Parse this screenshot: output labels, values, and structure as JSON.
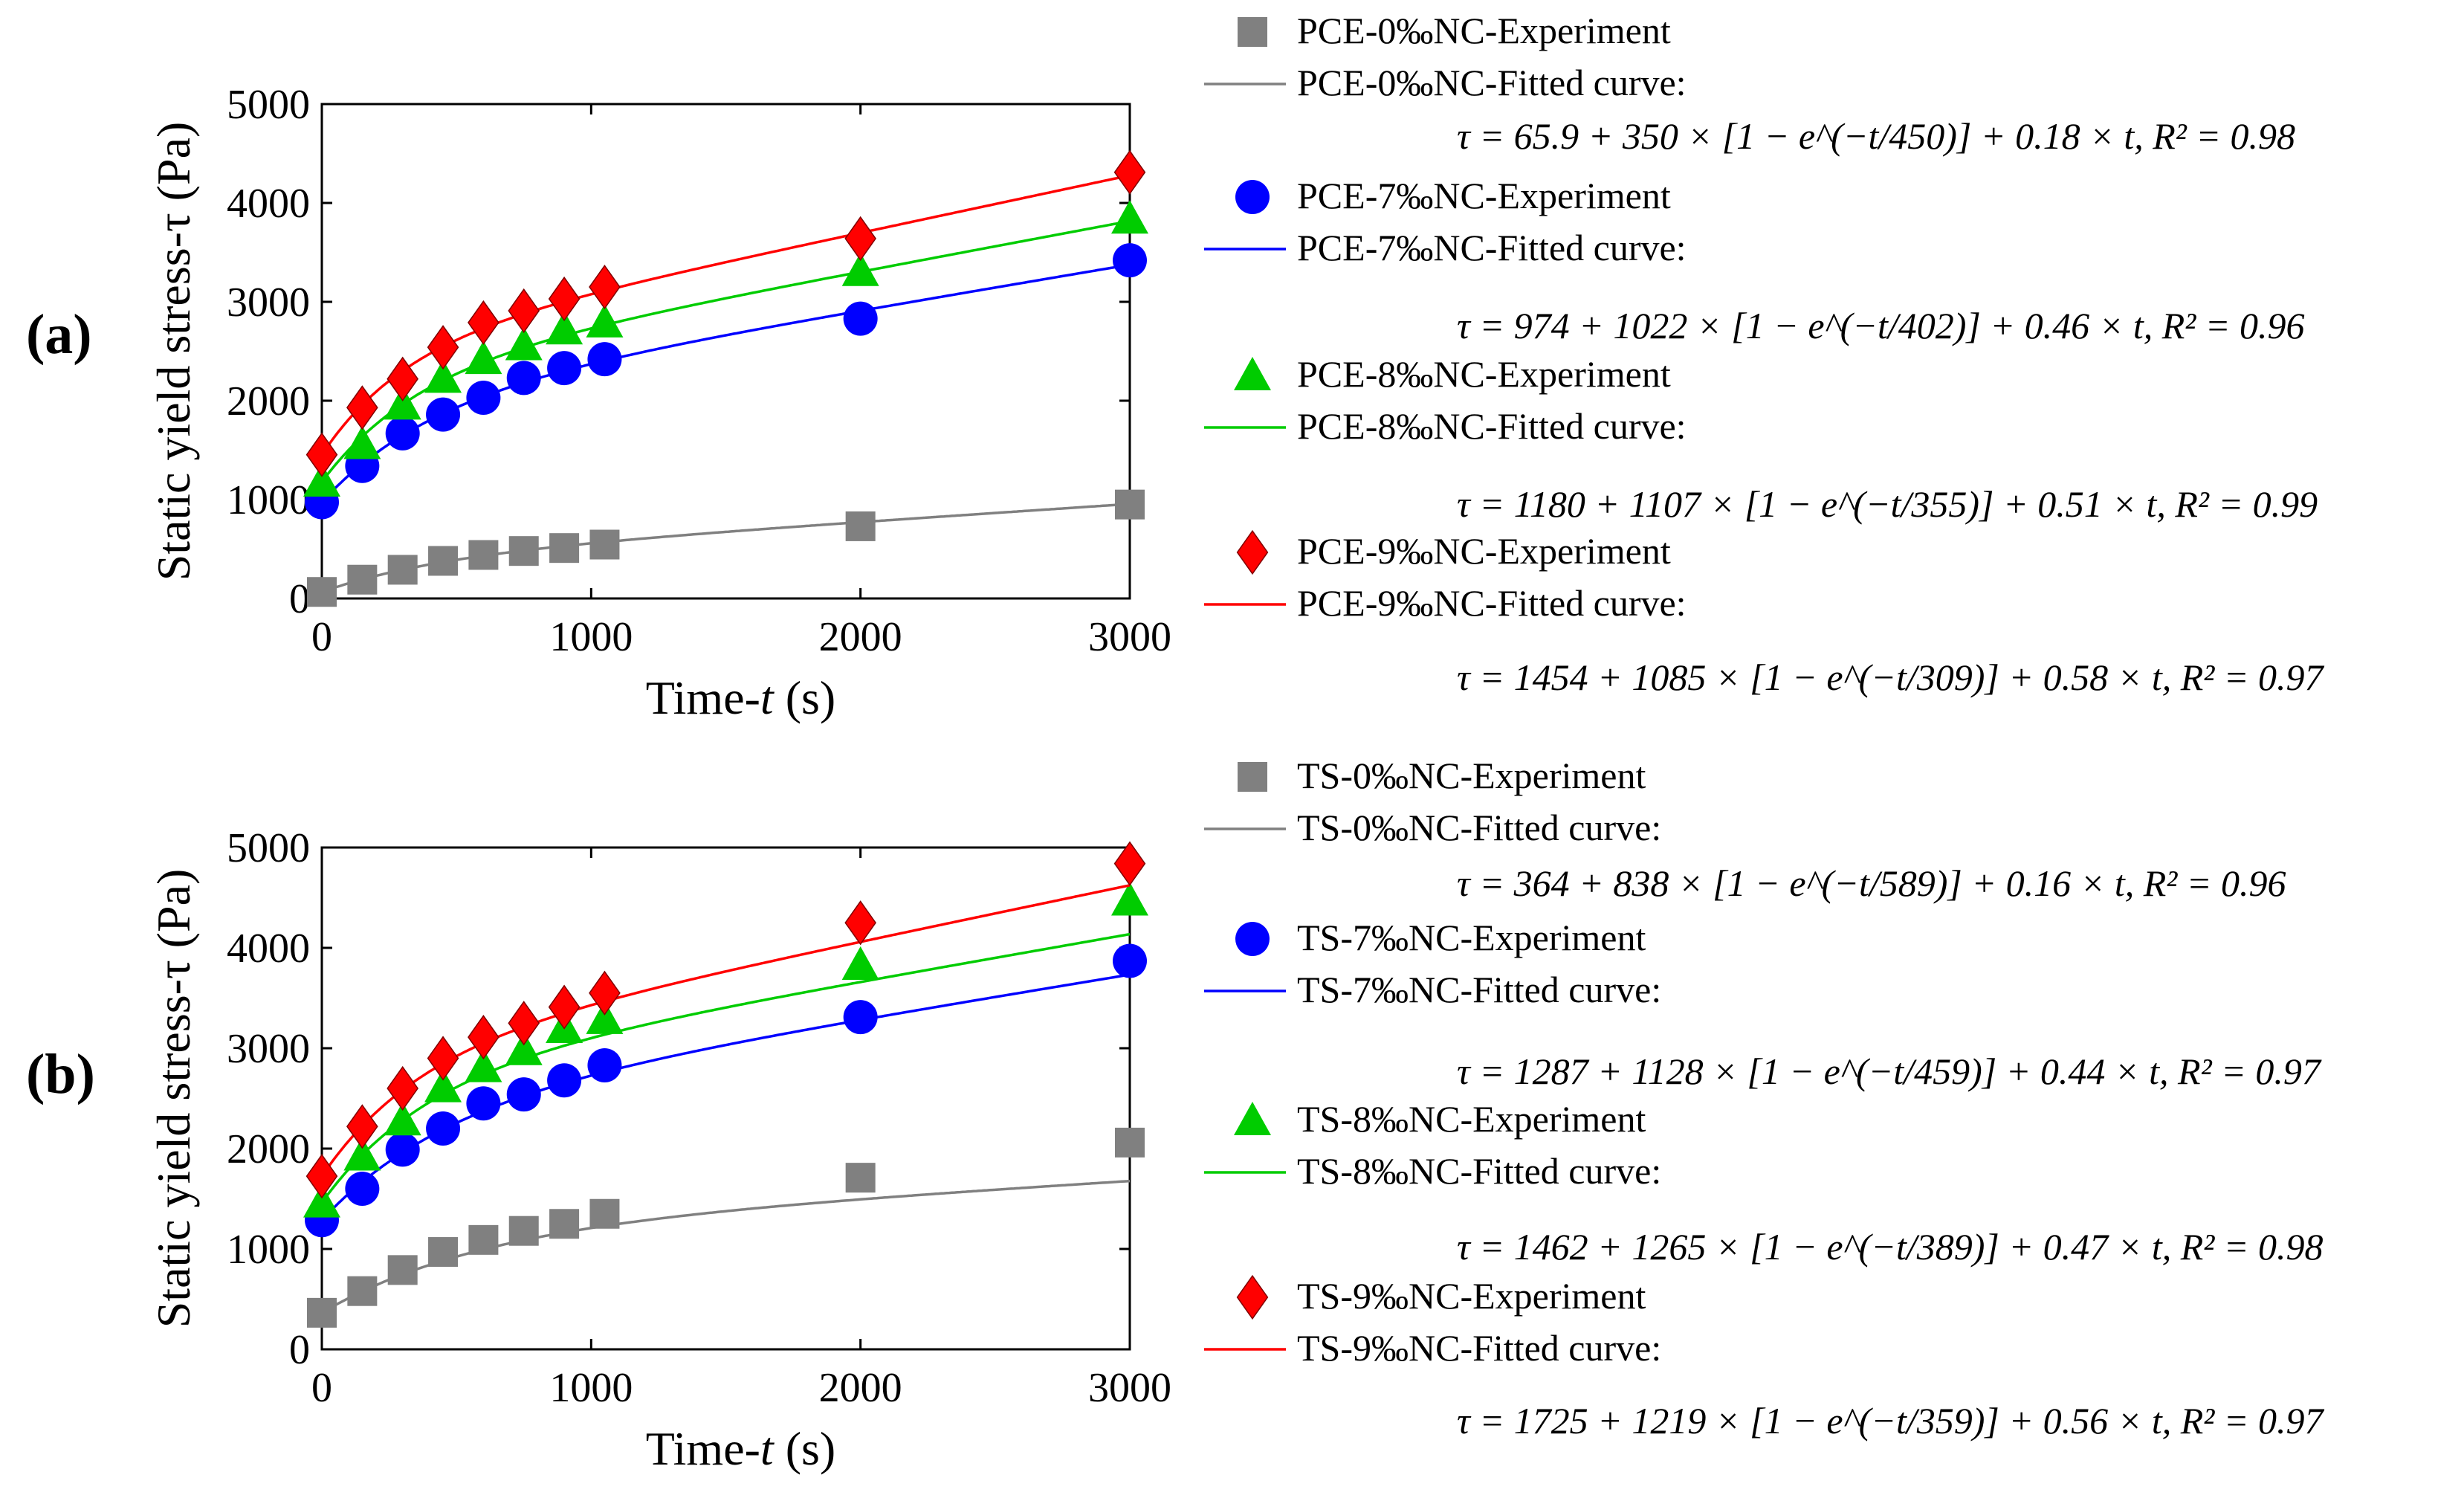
{
  "chart_data": [
    {
      "type": "line",
      "panel_label": "(a)",
      "xlabel_main": "Time-",
      "xlabel_var": "t",
      "xlabel_unit": " (s)",
      "ylabel": "Static yield stress-τ (Pa)",
      "xlim": [
        0,
        3000
      ],
      "ylim": [
        0,
        5000
      ],
      "xticks": [
        0,
        1000,
        2000,
        3000
      ],
      "yticks": [
        0,
        1000,
        2000,
        3000,
        4000,
        5000
      ],
      "x": [
        0,
        150,
        300,
        450,
        600,
        750,
        900,
        1050,
        2000,
        3000
      ],
      "series": [
        {
          "name": "PCE-0%₀NC",
          "color": "#808080",
          "marker": "square",
          "exp_label": "PCE-0‰NC-Experiment",
          "fit_label": "PCE-0‰NC-Fitted curve:",
          "equation": "τ = 65.9 + 350 × [1 − e^(−t/450)] + 0.18 × t,  R² = 0.98",
          "params": {
            "a": 65.9,
            "b": 350,
            "c": 450,
            "d": 0.18
          },
          "values": [
            66,
            190,
            290,
            380,
            440,
            480,
            510,
            545,
            730,
            950
          ]
        },
        {
          "name": "PCE-7%₀NC",
          "color": "#0000ff",
          "marker": "circle",
          "exp_label": "PCE-7‰NC-Experiment",
          "fit_label": "PCE-7‰NC-Fitted curve:",
          "equation": "τ = 974 + 1022 × [1 − e^(−t/402)] + 0.46 × t,  R² = 0.96",
          "params": {
            "a": 974,
            "b": 1022,
            "c": 402,
            "d": 0.46
          },
          "values": [
            974,
            1340,
            1670,
            1860,
            2030,
            2230,
            2330,
            2420,
            2830,
            3420
          ]
        },
        {
          "name": "PCE-8%₀NC",
          "color": "#00cc00",
          "marker": "triangle",
          "exp_label": "PCE-8‰NC-Experiment",
          "fit_label": "PCE-8‰NC-Fitted curve:",
          "equation": "τ = 1180 + 1107 × [1 − e^(−t/355)] + 0.51 × t,  R² = 0.99",
          "params": {
            "a": 1180,
            "b": 1107,
            "c": 355,
            "d": 0.51
          },
          "values": [
            1180,
            1560,
            1960,
            2230,
            2420,
            2560,
            2720,
            2790,
            3310,
            3840
          ]
        },
        {
          "name": "PCE-9%₀NC",
          "color": "#ff0000",
          "marker": "diamond",
          "exp_label": "PCE-9‰NC-Experiment",
          "fit_label": "PCE-9‰NC-Fitted curve:",
          "equation": "τ = 1454 + 1085 × [1 − e^(−t/309)] + 0.58 × t,  R² = 0.97",
          "params": {
            "a": 1454,
            "b": 1085,
            "c": 309,
            "d": 0.58
          },
          "values": [
            1454,
            1930,
            2220,
            2540,
            2790,
            2910,
            3030,
            3150,
            3640,
            4310
          ]
        }
      ]
    },
    {
      "type": "line",
      "panel_label": "(b)",
      "xlabel_main": "Time-",
      "xlabel_var": "t",
      "xlabel_unit": " (s)",
      "ylabel": "Static yield stress-τ (Pa)",
      "xlim": [
        0,
        3000
      ],
      "ylim": [
        0,
        5000
      ],
      "xticks": [
        0,
        1000,
        2000,
        3000
      ],
      "yticks": [
        0,
        1000,
        2000,
        3000,
        4000,
        5000
      ],
      "x": [
        0,
        150,
        300,
        450,
        600,
        750,
        900,
        1050,
        2000,
        3000
      ],
      "series": [
        {
          "name": "TS-0%₀NC",
          "color": "#808080",
          "marker": "square",
          "exp_label": "TS-0‰NC-Experiment",
          "fit_label": "TS-0‰NC-Fitted curve:",
          "equation": "τ = 364 + 838 × [1 − e^(−t/589)] + 0.16 × t,  R² = 0.96",
          "params": {
            "a": 364,
            "b": 838,
            "c": 589,
            "d": 0.16
          },
          "values": [
            364,
            580,
            790,
            970,
            1090,
            1180,
            1250,
            1350,
            1710,
            2060
          ]
        },
        {
          "name": "TS-7%₀NC",
          "color": "#0000ff",
          "marker": "circle",
          "exp_label": "TS-7‰NC-Experiment",
          "fit_label": "TS-7‰NC-Fitted curve:",
          "equation": "τ = 1287 + 1128 × [1 − e^(−t/459)] + 0.44 × t,  R² = 0.97",
          "params": {
            "a": 1287,
            "b": 1128,
            "c": 459,
            "d": 0.44
          },
          "values": [
            1287,
            1600,
            1990,
            2200,
            2450,
            2540,
            2680,
            2830,
            3310,
            3870
          ]
        },
        {
          "name": "TS-8%₀NC",
          "color": "#00cc00",
          "marker": "triangle",
          "exp_label": "TS-8‰NC-Experiment",
          "fit_label": "TS-8‰NC-Fitted curve:",
          "equation": "τ = 1462 + 1265 × [1 − e^(−t/389)] + 0.47 × t,  R² = 0.98",
          "params": {
            "a": 1462,
            "b": 1265,
            "c": 389,
            "d": 0.47
          },
          "values": [
            1462,
            1930,
            2280,
            2610,
            2810,
            2980,
            3200,
            3290,
            3830,
            4470
          ]
        },
        {
          "name": "TS-9%₀NC",
          "color": "#ff0000",
          "marker": "diamond",
          "exp_label": "TS-9‰NC-Experiment",
          "fit_label": "TS-9‰NC-Fitted curve:",
          "equation": "τ = 1725 + 1219 × [1 − e^(−t/359)] + 0.56 × t,  R² = 0.97",
          "params": {
            "a": 1725,
            "b": 1219,
            "c": 359,
            "d": 0.56
          },
          "values": [
            1725,
            2220,
            2600,
            2900,
            3110,
            3250,
            3410,
            3550,
            4250,
            4840
          ]
        }
      ]
    }
  ]
}
